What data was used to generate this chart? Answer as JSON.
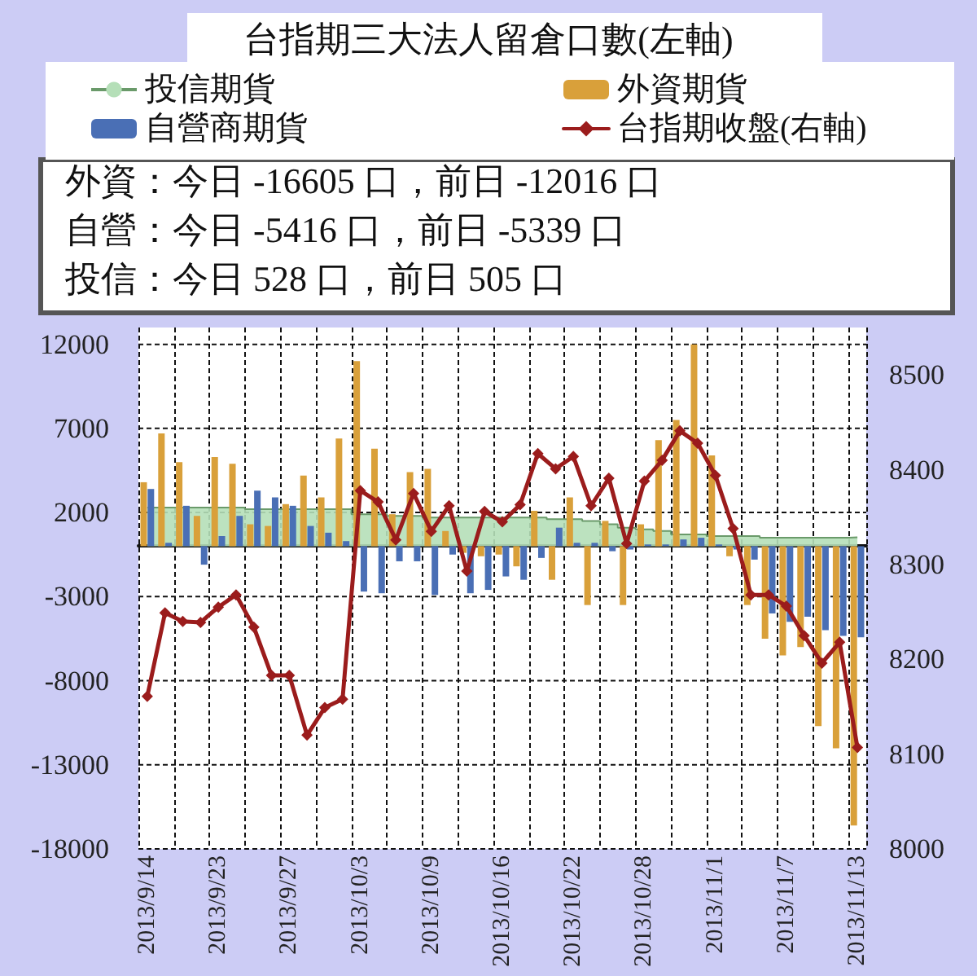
{
  "chart_data": {
    "type": "bar",
    "title": "台指期三大法人留倉口數(左軸)",
    "categories": [
      "2013/9/14",
      null,
      null,
      null,
      "2013/9/23",
      null,
      null,
      null,
      "2013/9/27",
      null,
      null,
      null,
      "2013/10/3",
      null,
      null,
      null,
      "2013/10/9",
      null,
      null,
      null,
      "2013/10/16",
      null,
      null,
      null,
      "2013/10/22",
      null,
      null,
      null,
      "2013/10/28",
      null,
      null,
      null,
      "2013/11/1",
      null,
      null,
      null,
      "2013/11/7",
      null,
      null,
      null,
      "2013/11/13"
    ],
    "series": [
      {
        "name": "投信期貨",
        "type": "area",
        "color": "#b5dfb8",
        "values": [
          2300,
          2300,
          2300,
          2300,
          2300,
          2300,
          2200,
          2200,
          2200,
          2200,
          2200,
          2200,
          1900,
          1900,
          1800,
          1800,
          1700,
          1700,
          1700,
          1700,
          1700,
          1700,
          1700,
          1600,
          1600,
          1500,
          1300,
          1100,
          1000,
          900,
          700,
          700,
          600,
          600,
          600,
          500,
          500,
          500,
          500,
          505,
          528
        ]
      },
      {
        "name": "外資期貨",
        "color": "#d9a03a",
        "values": [
          3800,
          6700,
          5000,
          1800,
          5300,
          4900,
          1300,
          1200,
          2500,
          4200,
          2900,
          6400,
          11000,
          5800,
          1900,
          4400,
          4600,
          900,
          -400,
          -600,
          -500,
          -1200,
          2100,
          -2000,
          2900,
          -3500,
          1500,
          -3500,
          1300,
          6300,
          7500,
          12000,
          5400,
          -600,
          -3500,
          -5500,
          -6500,
          -6000,
          -10700,
          -12016,
          -16605
        ]
      },
      {
        "name": "自營商期貨",
        "color": "#4a6fb5",
        "values": [
          3400,
          200,
          2400,
          -1100,
          600,
          1800,
          3300,
          2900,
          2400,
          1200,
          800,
          300,
          -2700,
          -2800,
          -900,
          -900,
          -2900,
          -500,
          -2800,
          -2600,
          -1800,
          -2000,
          -700,
          1100,
          200,
          200,
          -300,
          -200,
          100,
          100,
          400,
          500,
          100,
          -200,
          -800,
          -4000,
          -4500,
          -4200,
          -5000,
          -5339,
          -5416
        ]
      },
      {
        "name": "台指期收盤(右軸)",
        "type": "line",
        "axis": "y2",
        "marker": "diamond",
        "color": "#9b1c1c",
        "values": [
          8161,
          8249,
          8240,
          8239,
          8255,
          8268,
          8234,
          8183,
          8183,
          8120,
          8149,
          8158,
          8378,
          8366,
          8326,
          8375,
          8335,
          8362,
          8293,
          8356,
          8345,
          8363,
          8417,
          8401,
          8414,
          8362,
          8391,
          8322,
          8388,
          8410,
          8441,
          8428,
          8394,
          8338,
          8268,
          8268,
          8256,
          8225,
          8196,
          8218,
          8107
        ]
      }
    ],
    "ylim": [
      -18000,
      13000
    ],
    "yticks": [
      -18000,
      -13000,
      -8000,
      -3000,
      2000,
      7000,
      12000
    ],
    "y2lim": [
      8000,
      8550
    ],
    "y2ticks": [
      8000,
      8100,
      8200,
      8300,
      8400,
      8500
    ],
    "annotations": [
      "外資：今日 -16605 口，前日 -12016 口",
      "自營：今日 -5416 口，前日 -5339 口",
      "投信：今日 528 口，前日 505 口"
    ],
    "grid": true,
    "legend": "top",
    "line_style": "solid"
  }
}
